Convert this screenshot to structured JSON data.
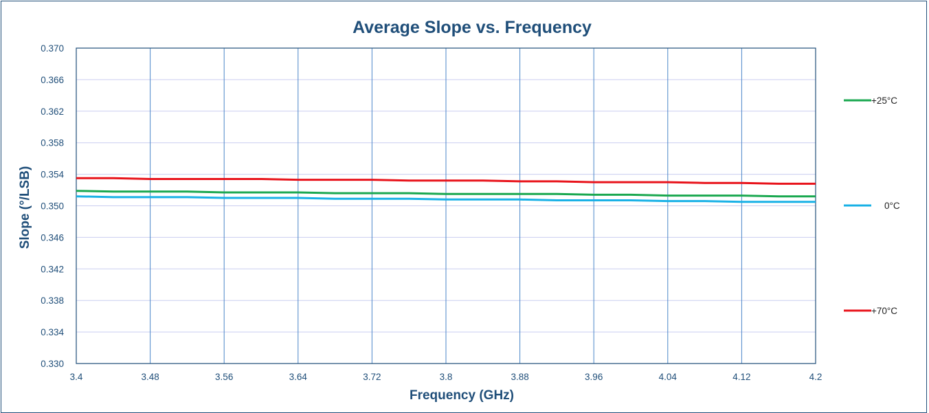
{
  "chart_data": {
    "type": "line",
    "title": "Average Slope vs. Frequency",
    "xlabel": "Frequency (GHz)",
    "ylabel": "Slope (°/LSB)",
    "xlim": [
      3.4,
      4.2
    ],
    "ylim": [
      0.33,
      0.37
    ],
    "x_ticks": [
      "3.4",
      "3.48",
      "3.56",
      "3.64",
      "3.72",
      "3.8",
      "3.88",
      "3.96",
      "4.04",
      "4.12",
      "4.2"
    ],
    "y_ticks": [
      "0.330",
      "0.334",
      "0.338",
      "0.342",
      "0.346",
      "0.350",
      "0.354",
      "0.358",
      "0.362",
      "0.366",
      "0.370"
    ],
    "grid": true,
    "legend_position": "right",
    "x": [
      3.4,
      3.44,
      3.48,
      3.52,
      3.56,
      3.6,
      3.64,
      3.68,
      3.72,
      3.76,
      3.8,
      3.84,
      3.88,
      3.92,
      3.96,
      4.0,
      4.04,
      4.08,
      4.12,
      4.16,
      4.2
    ],
    "series": [
      {
        "name": "+25°C",
        "color": "#1aa850",
        "values": [
          0.3519,
          0.3518,
          0.3518,
          0.3518,
          0.3517,
          0.3517,
          0.3517,
          0.3516,
          0.3516,
          0.3516,
          0.3515,
          0.3515,
          0.3515,
          0.3515,
          0.3514,
          0.3514,
          0.3513,
          0.3513,
          0.3513,
          0.3512,
          0.3512
        ]
      },
      {
        "name": "0°C",
        "color": "#19b1e6",
        "values": [
          0.3512,
          0.3511,
          0.3511,
          0.3511,
          0.351,
          0.351,
          0.351,
          0.3509,
          0.3509,
          0.3509,
          0.3508,
          0.3508,
          0.3508,
          0.3507,
          0.3507,
          0.3507,
          0.3506,
          0.3506,
          0.3505,
          0.3505,
          0.3505
        ]
      },
      {
        "name": "+70°C",
        "color": "#e8131b",
        "values": [
          0.3535,
          0.3535,
          0.3534,
          0.3534,
          0.3534,
          0.3534,
          0.3533,
          0.3533,
          0.3533,
          0.3532,
          0.3532,
          0.3532,
          0.3531,
          0.3531,
          0.353,
          0.353,
          0.353,
          0.3529,
          0.3529,
          0.3528,
          0.3528
        ]
      }
    ]
  }
}
